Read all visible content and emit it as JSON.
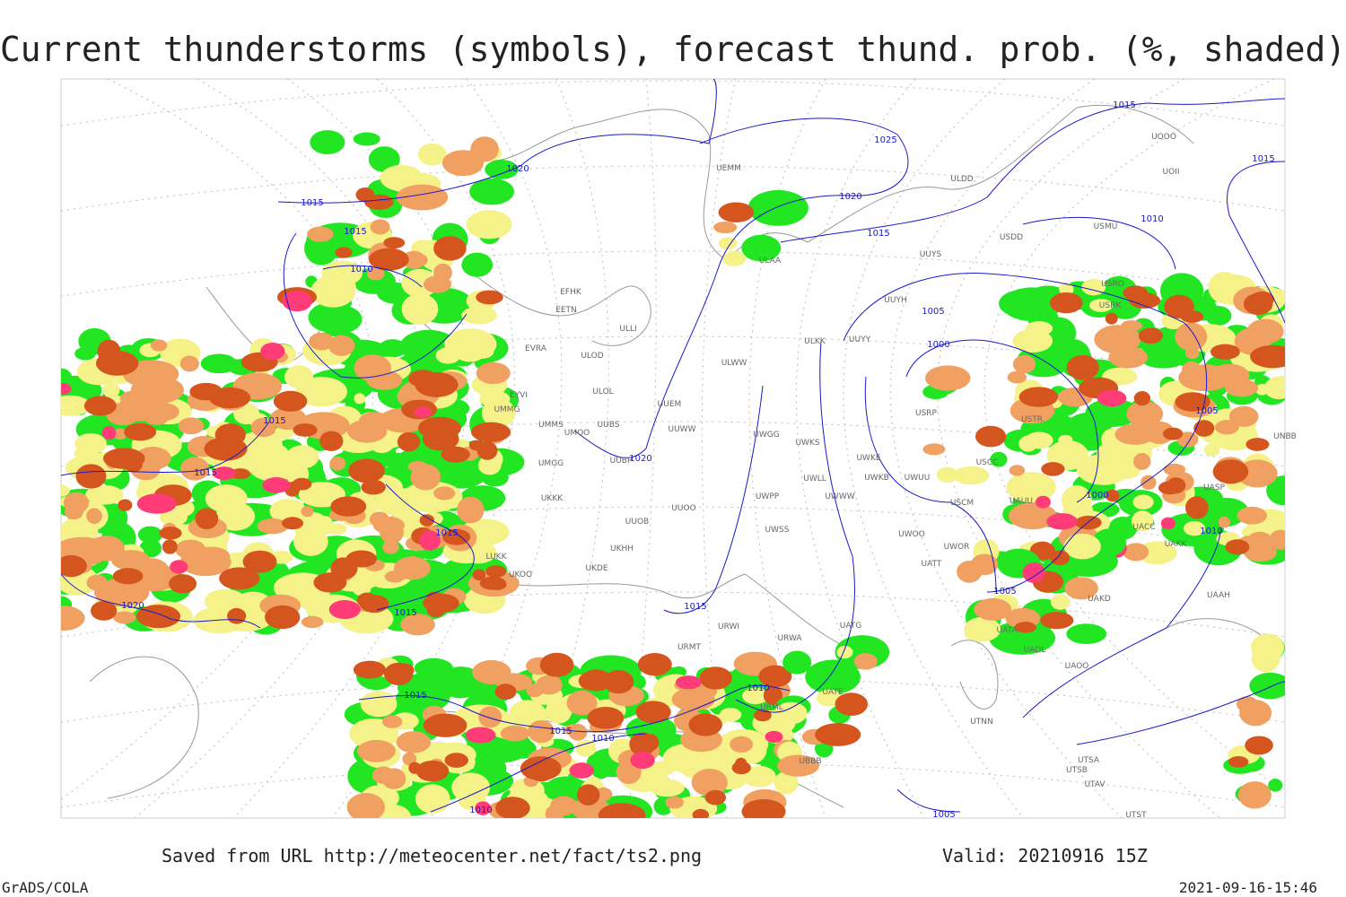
{
  "title": "Current thunderstorms (symbols), forecast thund. prob. (%, shaded)",
  "footer": {
    "source": "Saved from URL http://meteocenter.net/fact/ts2.png",
    "valid": "Valid: 20210916 15Z"
  },
  "credit": "GrADS/COLA",
  "timestamp": "2021-09-16-15:46",
  "isobar_labels": [
    "1015",
    "1020",
    "1015",
    "1010",
    "1025",
    "1020",
    "1015",
    "1015",
    "1015",
    "1010",
    "1005",
    "1000",
    "1020",
    "1015",
    "1015",
    "1015",
    "1015",
    "1020",
    "1015",
    "1010",
    "1015",
    "1015",
    "1010",
    "1005",
    "1000",
    "1010",
    "1005",
    "1010",
    "1005"
  ],
  "stations": [
    "UEMM",
    "ULDD",
    "UOOO",
    "UOII",
    "USDD",
    "USMU",
    "UUYS",
    "USRO",
    "USRK",
    "UUYH",
    "ULAA",
    "EFHK",
    "EETN",
    "ULLI",
    "EVRA",
    "ULOD",
    "ULWW",
    "ULKK",
    "UUYY",
    "EYVI",
    "UMMG",
    "ULOL",
    "UUEM",
    "UMMS",
    "UMOO",
    "UUBS",
    "UUWW",
    "UWGG",
    "UWKS",
    "UWKE",
    "USTR",
    "USRP",
    "USCC",
    "UMGG",
    "UUBP",
    "UWLL",
    "UWKB",
    "UWUU",
    "UKKK",
    "UUOO",
    "UWPP",
    "UWWW",
    "USCM",
    "UAUU",
    "UASP",
    "UUOB",
    "UWSS",
    "LUKK",
    "UKHH",
    "UKDE",
    "UKOO",
    "UWOO",
    "UWOR",
    "UATT",
    "UAKK",
    "UACC",
    "UAKD",
    "UATA",
    "UAOL",
    "UAOO",
    "UATG",
    "URWI",
    "URMT",
    "URWA",
    "URML",
    "UATE",
    "UBBB",
    "UTNN",
    "UTSA",
    "UTSB",
    "UTAV",
    "UTST",
    "UNBB",
    "UAAH"
  ]
}
